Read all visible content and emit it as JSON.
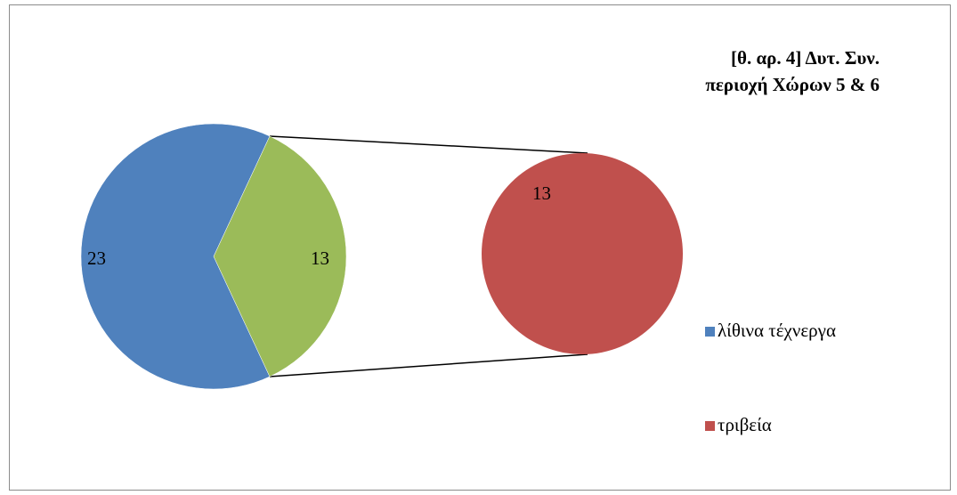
{
  "chart_data": {
    "type": "pie",
    "subtype": "pie-of-pie",
    "title_lines": [
      "[θ. αρ. 4] Δυτ. Συν.",
      "περιοχή Χώρων 5 & 6"
    ],
    "main_pie": {
      "slices": [
        {
          "category": "λίθινα τέχνεργα",
          "value": 23,
          "color": "#4f81bd"
        },
        {
          "category": "τριβεία (other)",
          "value": 13,
          "color": "#9bbb59"
        }
      ]
    },
    "secondary_pie": {
      "slices": [
        {
          "category": "τριβεία",
          "value": 13,
          "color": "#c0504d"
        }
      ]
    },
    "legend": {
      "position": "right",
      "entries": [
        {
          "label": "λίθινα τέχνεργα",
          "color": "#4f81bd"
        },
        {
          "label": "τριβεία",
          "color": "#c0504d"
        }
      ]
    }
  }
}
